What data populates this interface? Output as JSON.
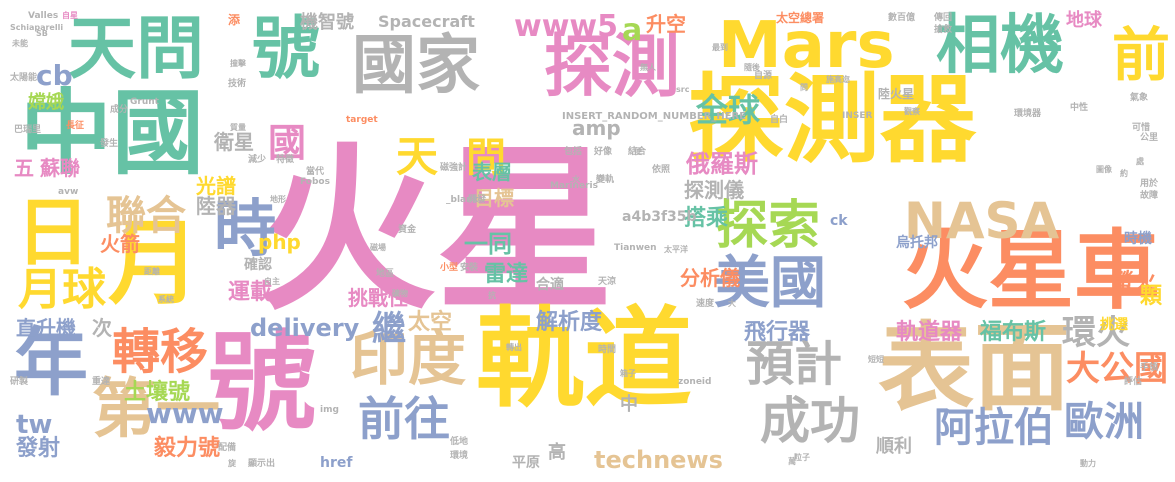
{
  "palette": {
    "pink": "#e78ac3",
    "yellow": "#ffd92f",
    "green": "#66c2a5",
    "orange": "#fc8d62",
    "blue": "#8da0cb",
    "lime": "#a6d854",
    "tan": "#e5c494",
    "gray": "#b3b3b3"
  },
  "words": [
    {
      "text": "火星",
      "color": "pink"
    },
    {
      "text": "探測器",
      "color": "yellow"
    },
    {
      "text": "軌道",
      "color": "yellow"
    },
    {
      "text": "中國",
      "color": "green"
    },
    {
      "text": "天問",
      "color": "green"
    },
    {
      "text": "號",
      "color": "green"
    },
    {
      "text": "號",
      "color": "pink"
    },
    {
      "text": "國家",
      "color": "gray"
    },
    {
      "text": "探測",
      "color": "pink"
    },
    {
      "text": "Mars",
      "color": "yellow"
    },
    {
      "text": "相機",
      "color": "green"
    },
    {
      "text": "火星車",
      "color": "orange"
    },
    {
      "text": "表面",
      "color": "tan"
    },
    {
      "text": "月",
      "color": "yellow"
    },
    {
      "text": "日",
      "color": "yellow"
    },
    {
      "text": "年",
      "color": "blue"
    },
    {
      "text": "第一",
      "color": "tan"
    },
    {
      "text": "印度",
      "color": "tan"
    },
    {
      "text": "轉移",
      "color": "orange"
    },
    {
      "text": "美國",
      "color": "blue"
    },
    {
      "text": "探索",
      "color": "lime"
    },
    {
      "text": "NASA",
      "color": "tan"
    },
    {
      "text": "時",
      "color": "blue"
    },
    {
      "text": "天",
      "color": "yellow"
    },
    {
      "text": "問",
      "color": "yellow"
    },
    {
      "text": "前往",
      "color": "blue"
    },
    {
      "text": "成功",
      "color": "gray"
    },
    {
      "text": "預計",
      "color": "gray"
    },
    {
      "text": "月球",
      "color": "yellow"
    },
    {
      "text": "聯合",
      "color": "tan"
    },
    {
      "text": "繼",
      "color": "blue"
    },
    {
      "text": "www5",
      "color": "pink"
    },
    {
      "text": "a",
      "color": "lime"
    },
    {
      "text": "全球",
      "color": "green"
    },
    {
      "text": "前",
      "color": "yellow"
    },
    {
      "text": "阿拉伯",
      "color": "blue"
    },
    {
      "text": "歐洲",
      "color": "blue"
    },
    {
      "text": "大公國",
      "color": "orange"
    },
    {
      "text": "環火",
      "color": "gray"
    },
    {
      "text": "國",
      "color": "pink"
    },
    {
      "text": "cb",
      "color": "blue"
    },
    {
      "text": "嫦娥",
      "color": "lime"
    },
    {
      "text": "五",
      "color": "pink"
    },
    {
      "text": "蘇聯",
      "color": "pink"
    },
    {
      "text": "土壤號",
      "color": "lime"
    },
    {
      "text": "www",
      "color": "blue"
    },
    {
      "text": "tw",
      "color": "blue"
    },
    {
      "text": "發射",
      "color": "blue"
    },
    {
      "text": "毅力號",
      "color": "orange"
    },
    {
      "text": "technews",
      "color": "tan"
    },
    {
      "text": "順利",
      "color": "gray"
    },
    {
      "text": "高",
      "color": "gray"
    },
    {
      "text": "delivery",
      "color": "blue"
    },
    {
      "text": "解析度",
      "color": "blue"
    },
    {
      "text": "飛行器",
      "color": "blue"
    },
    {
      "text": "軌道器",
      "color": "pink"
    },
    {
      "text": "福布斯",
      "color": "green"
    },
    {
      "text": "搭乘",
      "color": "green"
    },
    {
      "text": "螢火",
      "color": "orange"
    },
    {
      "text": "俄羅斯",
      "color": "pink"
    },
    {
      "text": "探測儀",
      "color": "gray"
    },
    {
      "text": "雷達",
      "color": "green"
    },
    {
      "text": "分析儀",
      "color": "orange"
    },
    {
      "text": "挑戰性",
      "color": "pink"
    },
    {
      "text": "太空",
      "color": "tan"
    },
    {
      "text": "一同",
      "color": "green"
    },
    {
      "text": "表層",
      "color": "green"
    },
    {
      "text": "目標",
      "color": "tan"
    },
    {
      "text": "amp",
      "color": "gray"
    },
    {
      "text": "php",
      "color": "yellow"
    },
    {
      "text": "光譜",
      "color": "yellow"
    },
    {
      "text": "運載",
      "color": "pink"
    },
    {
      "text": "陸器",
      "color": "gray"
    },
    {
      "text": "火箭",
      "color": "orange"
    },
    {
      "text": "直升機",
      "color": "blue"
    },
    {
      "text": "次",
      "color": "gray"
    },
    {
      "text": "衛星",
      "color": "gray"
    },
    {
      "text": "機智號",
      "color": "gray"
    },
    {
      "text": "Spacecraft",
      "color": "gray"
    },
    {
      "text": "升空",
      "color": "orange"
    },
    {
      "text": "地球",
      "color": "pink"
    },
    {
      "text": "a4b3f35b",
      "color": "gray"
    },
    {
      "text": "INSERT_RANDOM_NUMBER_HERE",
      "color": "gray"
    },
    {
      "text": "中",
      "color": "gray"
    },
    {
      "text": "合適",
      "color": "gray"
    },
    {
      "text": "平原",
      "color": "gray"
    },
    {
      "text": "href",
      "color": "blue"
    },
    {
      "text": "ck",
      "color": "blue"
    },
    {
      "text": "烏托邦",
      "color": "blue"
    },
    {
      "text": "時機",
      "color": "blue"
    },
    {
      "text": "顆",
      "color": "yellow"
    },
    {
      "text": "挑選",
      "color": "yellow"
    },
    {
      "text": "確認",
      "color": "gray"
    },
    {
      "text": "陸火星",
      "color": "gray"
    },
    {
      "text": "太空總署",
      "color": "orange"
    },
    {
      "text": "Valles",
      "color": "gray"
    },
    {
      "text": "Schiaparelli",
      "color": "gray"
    },
    {
      "text": "Grunt",
      "color": "gray"
    },
    {
      "text": "Fobos",
      "color": "gray"
    },
    {
      "text": "Marineris",
      "color": "gray"
    },
    {
      "text": "Tianwen",
      "color": "gray"
    },
    {
      "text": "_blank",
      "color": "gray"
    },
    {
      "text": "target",
      "color": "orange"
    },
    {
      "text": "INSER",
      "color": "gray"
    },
    {
      "text": "avw",
      "color": "gray"
    },
    {
      "text": "img",
      "color": "gray"
    },
    {
      "text": "zoneid",
      "color": "gray"
    },
    {
      "text": "SB",
      "color": "gray"
    },
    {
      "text": "太陽能",
      "color": "gray"
    },
    {
      "text": "巴瑞里",
      "color": "gray"
    },
    {
      "text": "長征",
      "color": "orange"
    },
    {
      "text": "發生",
      "color": "gray"
    },
    {
      "text": "減少",
      "color": "gray"
    },
    {
      "text": "特徵",
      "color": "gray"
    },
    {
      "text": "當代",
      "color": "gray"
    },
    {
      "text": "磁強計",
      "color": "gray"
    },
    {
      "text": "包括",
      "color": "gray"
    },
    {
      "text": "好像",
      "color": "gray"
    },
    {
      "text": "依照",
      "color": "gray"
    },
    {
      "text": "變軌",
      "color": "gray"
    },
    {
      "text": "可惜",
      "color": "gray"
    },
    {
      "text": "中性",
      "color": "gray"
    },
    {
      "text": "氣象",
      "color": "gray"
    },
    {
      "text": "環境器",
      "color": "gray"
    },
    {
      "text": "天涼",
      "color": "gray"
    },
    {
      "text": "地區",
      "color": "gray"
    },
    {
      "text": "公里",
      "color": "gray"
    },
    {
      "text": "自白",
      "color": "gray"
    },
    {
      "text": "資金",
      "color": "gray"
    },
    {
      "text": "結合",
      "color": "gray"
    },
    {
      "text": "小型",
      "color": "gray"
    },
    {
      "text": "安裝",
      "color": "gray"
    },
    {
      "text": "開發",
      "color": "gray"
    },
    {
      "text": "速度",
      "color": "gray"
    },
    {
      "text": "時間",
      "color": "gray"
    },
    {
      "text": "低地",
      "color": "gray"
    },
    {
      "text": "環境",
      "color": "gray"
    },
    {
      "text": "顯示出",
      "color": "gray"
    },
    {
      "text": "研製",
      "color": "gray"
    },
    {
      "text": "配備",
      "color": "gray"
    },
    {
      "text": "重達",
      "color": "gray"
    },
    {
      "text": "技術",
      "color": "gray"
    },
    {
      "text": "成分",
      "color": "gray"
    },
    {
      "text": "數百億",
      "color": "gray"
    },
    {
      "text": "傳回",
      "color": "gray"
    },
    {
      "text": "搶救",
      "color": "gray"
    },
    {
      "text": "用於",
      "color": "gray"
    },
    {
      "text": "故障",
      "color": "gray"
    },
    {
      "text": "手領",
      "color": "gray"
    },
    {
      "text": "評估",
      "color": "gray"
    },
    {
      "text": "自源",
      "color": "gray"
    },
    {
      "text": "添",
      "color": "orange"
    },
    {
      "text": "自星",
      "color": "pink"
    },
    {
      "text": "未能",
      "color": "gray"
    },
    {
      "text": "撞擊",
      "color": "gray"
    },
    {
      "text": "萬",
      "color": "gray"
    },
    {
      "text": "大",
      "color": "gray"
    },
    {
      "text": "旋",
      "color": "gray"
    },
    {
      "text": "便",
      "color": "gray"
    },
    {
      "text": "水",
      "color": "gray"
    },
    {
      "text": "觀察",
      "color": "gray"
    },
    {
      "text": "處",
      "color": "gray"
    },
    {
      "text": "約",
      "color": "gray"
    },
    {
      "text": "動力",
      "color": "gray"
    },
    {
      "text": "粒子",
      "color": "gray"
    },
    {
      "text": "短短",
      "color": "gray"
    },
    {
      "text": "太平洋",
      "color": "gray"
    },
    {
      "text": "箱子",
      "color": "gray"
    },
    {
      "text": "轉出",
      "color": "gray"
    },
    {
      "text": "磁場",
      "color": "gray"
    },
    {
      "text": "礦物",
      "color": "gray"
    },
    {
      "text": "系統",
      "color": "gray"
    },
    {
      "text": "距離",
      "color": "gray"
    },
    {
      "text": "自主",
      "color": "gray"
    },
    {
      "text": "最到",
      "color": "gray"
    },
    {
      "text": "隨後",
      "color": "gray"
    },
    {
      "text": "施高迩",
      "color": "gray"
    },
    {
      "text": "質量",
      "color": "gray"
    },
    {
      "text": "地形",
      "color": "gray"
    },
    {
      "text": "圖像",
      "color": "gray"
    },
    {
      "text": "無人",
      "color": "gray"
    },
    {
      "text": "問",
      "color": "gray"
    },
    {
      "text": "src",
      "color": "gray"
    },
    {
      "text": "抗",
      "color": "gray"
    }
  ]
}
